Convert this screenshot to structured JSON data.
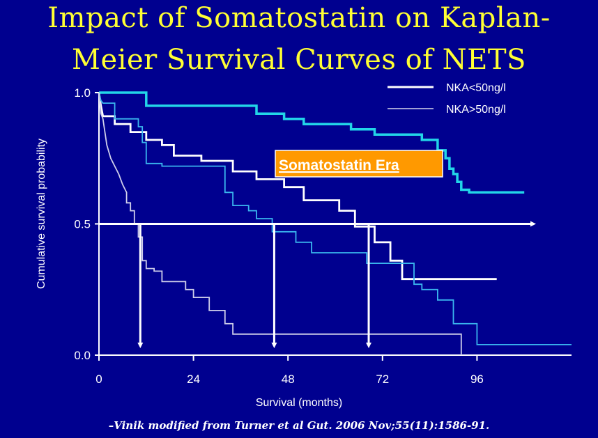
{
  "title_line1": "Impact of Somatostatin  on Kaplan-",
  "title_line2": "Meier Survival  Curves of NETS",
  "citation": "–Vinik modified from Turner et al Gut. 2006 Nov;55(11):1586-91.",
  "chart_data": {
    "type": "line",
    "step": true,
    "xlabel": "Survival  (months)",
    "ylabel": "Cumulative survival probability",
    "xlim": [
      0,
      120
    ],
    "ylim": [
      0,
      1
    ],
    "x_ticks": [
      0,
      24,
      48,
      72,
      96
    ],
    "y_ticks": [
      0.0,
      0.5,
      1.0
    ],
    "y_tick_labels": [
      "0.0",
      "0.5",
      "1.0"
    ],
    "legend": {
      "position": "top-right",
      "entries": [
        {
          "label": "NKA<50ng/l",
          "color": "#ffffff",
          "width": "thick"
        },
        {
          "label": "NKA>50ng/l",
          "color": "#ffffff",
          "width": "thin"
        }
      ]
    },
    "annotation": {
      "text": "Somatostatin Era",
      "background": "#ff9900",
      "color": "#ffffff"
    },
    "median_line": {
      "y": 0.5,
      "color": "#ffffff"
    },
    "median_arrows_x": [
      10.5,
      44.5,
      68.5
    ],
    "series": [
      {
        "color": "#22d5e8",
        "width": 3.5,
        "points": [
          [
            0,
            1.0
          ],
          [
            12,
            1.0
          ],
          [
            12,
            0.95
          ],
          [
            40,
            0.95
          ],
          [
            40,
            0.92
          ],
          [
            47,
            0.92
          ],
          [
            47,
            0.9
          ],
          [
            52,
            0.9
          ],
          [
            52,
            0.88
          ],
          [
            64,
            0.88
          ],
          [
            64,
            0.86
          ],
          [
            70,
            0.86
          ],
          [
            70,
            0.84
          ],
          [
            82,
            0.84
          ],
          [
            82,
            0.82
          ],
          [
            86,
            0.82
          ],
          [
            86,
            0.78
          ],
          [
            88,
            0.78
          ],
          [
            88,
            0.75
          ],
          [
            89,
            0.75
          ],
          [
            89,
            0.71
          ],
          [
            90,
            0.71
          ],
          [
            90,
            0.69
          ],
          [
            91,
            0.69
          ],
          [
            91,
            0.66
          ],
          [
            92,
            0.66
          ],
          [
            92,
            0.63
          ],
          [
            94,
            0.63
          ],
          [
            94,
            0.62
          ],
          [
            108,
            0.62
          ]
        ]
      },
      {
        "color": "#ffffff",
        "width": 2.8,
        "points": [
          [
            0,
            1.0
          ],
          [
            0.5,
            0.95
          ],
          [
            1,
            0.91
          ],
          [
            4,
            0.91
          ],
          [
            4,
            0.88
          ],
          [
            8,
            0.88
          ],
          [
            8,
            0.85
          ],
          [
            12,
            0.85
          ],
          [
            12,
            0.82
          ],
          [
            16,
            0.82
          ],
          [
            16,
            0.8
          ],
          [
            19,
            0.8
          ],
          [
            19,
            0.76
          ],
          [
            26,
            0.76
          ],
          [
            26,
            0.74
          ],
          [
            34,
            0.74
          ],
          [
            34,
            0.7
          ],
          [
            40,
            0.7
          ],
          [
            40,
            0.67
          ],
          [
            47,
            0.67
          ],
          [
            47,
            0.64
          ],
          [
            52,
            0.64
          ],
          [
            52,
            0.59
          ],
          [
            61,
            0.59
          ],
          [
            61,
            0.55
          ],
          [
            65,
            0.55
          ],
          [
            65,
            0.49
          ],
          [
            70,
            0.49
          ],
          [
            70,
            0.43
          ],
          [
            74,
            0.43
          ],
          [
            74,
            0.36
          ],
          [
            77,
            0.36
          ],
          [
            77,
            0.29
          ],
          [
            101,
            0.29
          ]
        ]
      },
      {
        "color": "#3ab6ee",
        "width": 1.8,
        "points": [
          [
            0,
            1.0
          ],
          [
            0.5,
            0.97
          ],
          [
            1,
            0.96
          ],
          [
            4,
            0.96
          ],
          [
            4,
            0.9
          ],
          [
            10,
            0.9
          ],
          [
            10,
            0.87
          ],
          [
            11,
            0.87
          ],
          [
            11,
            0.81
          ],
          [
            12,
            0.81
          ],
          [
            12,
            0.73
          ],
          [
            16,
            0.73
          ],
          [
            16,
            0.72
          ],
          [
            32,
            0.72
          ],
          [
            32,
            0.62
          ],
          [
            34,
            0.62
          ],
          [
            34,
            0.57
          ],
          [
            38,
            0.57
          ],
          [
            38,
            0.55
          ],
          [
            40,
            0.55
          ],
          [
            40,
            0.52
          ],
          [
            44,
            0.52
          ],
          [
            44,
            0.47
          ],
          [
            50,
            0.47
          ],
          [
            50,
            0.43
          ],
          [
            54,
            0.43
          ],
          [
            54,
            0.39
          ],
          [
            68,
            0.39
          ],
          [
            68,
            0.35
          ],
          [
            80,
            0.35
          ],
          [
            80,
            0.27
          ],
          [
            82,
            0.27
          ],
          [
            82,
            0.25
          ],
          [
            86,
            0.25
          ],
          [
            86,
            0.21
          ],
          [
            90,
            0.21
          ],
          [
            90,
            0.12
          ],
          [
            96,
            0.12
          ],
          [
            96,
            0.04
          ],
          [
            120,
            0.04
          ]
        ]
      },
      {
        "color": "#cfcfea",
        "width": 1.8,
        "points": [
          [
            0,
            1.0
          ],
          [
            0.5,
            0.92
          ],
          [
            1,
            0.9
          ],
          [
            1.5,
            0.85
          ],
          [
            2,
            0.8
          ],
          [
            3,
            0.75
          ],
          [
            4,
            0.72
          ],
          [
            5,
            0.69
          ],
          [
            6,
            0.65
          ],
          [
            7,
            0.62
          ],
          [
            7,
            0.58
          ],
          [
            8,
            0.58
          ],
          [
            8,
            0.55
          ],
          [
            9,
            0.55
          ],
          [
            9,
            0.5
          ],
          [
            10,
            0.5
          ],
          [
            10,
            0.45
          ],
          [
            11,
            0.45
          ],
          [
            11,
            0.36
          ],
          [
            12,
            0.36
          ],
          [
            12,
            0.33
          ],
          [
            14,
            0.33
          ],
          [
            14,
            0.32
          ],
          [
            16,
            0.32
          ],
          [
            16,
            0.28
          ],
          [
            22,
            0.28
          ],
          [
            22,
            0.25
          ],
          [
            24,
            0.25
          ],
          [
            24,
            0.22
          ],
          [
            28,
            0.22
          ],
          [
            28,
            0.17
          ],
          [
            32,
            0.17
          ],
          [
            32,
            0.12
          ],
          [
            34,
            0.12
          ],
          [
            34,
            0.08
          ],
          [
            92,
            0.08
          ],
          [
            92,
            0.0
          ]
        ]
      }
    ]
  }
}
